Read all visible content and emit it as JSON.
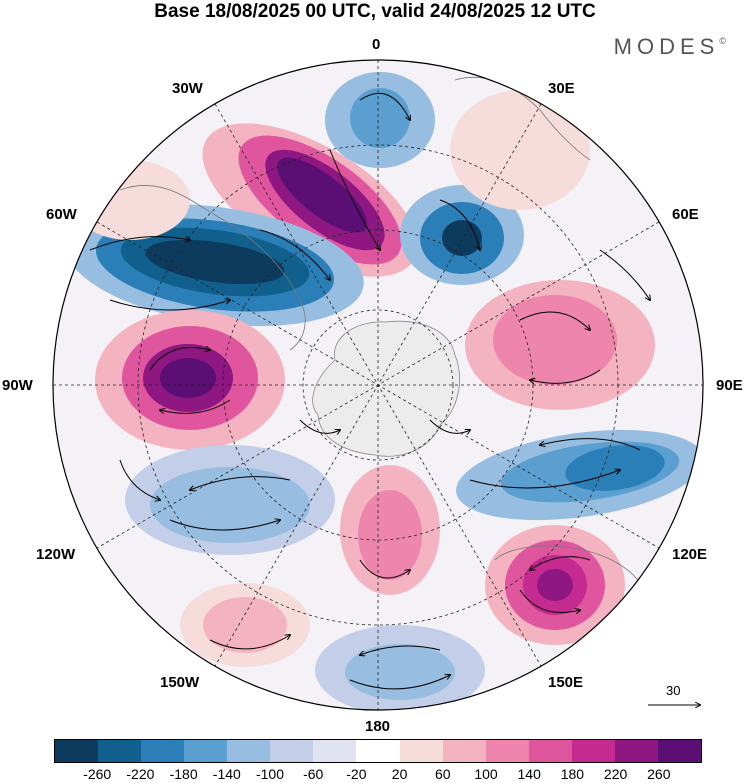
{
  "title": "Base 18/08/2025 00 UTC, valid 24/08/2025 12 UTC",
  "brand": {
    "text": "MODES",
    "mark": "©"
  },
  "map": {
    "projection": "south polar stereographic",
    "longitude_labels": {
      "top": "0",
      "top_left": "30W",
      "top_right": "30E",
      "upper_left": "60W",
      "upper_right": "60E",
      "left": "90W",
      "right": "90E",
      "lower_left": "120W",
      "lower_right": "120E",
      "bottom_left": "150W",
      "bottom_right": "150E",
      "bottom": "180"
    }
  },
  "vector_scale": {
    "value": "30"
  },
  "colorbar": {
    "colors": [
      "#0d3b5e",
      "#115f8c",
      "#2b7fb8",
      "#5a9fcf",
      "#97bde0",
      "#c3cfe8",
      "#e2e3f1",
      "#ffffff",
      "#f7dcdc",
      "#f4b3c1",
      "#ee85ad",
      "#e0569e",
      "#c42a8f",
      "#8e1781",
      "#5b0f74"
    ],
    "ticks": [
      "-260",
      "-220",
      "-180",
      "-140",
      "-100",
      "-60",
      "-20",
      "20",
      "60",
      "100",
      "140",
      "180",
      "220",
      "260"
    ]
  }
}
